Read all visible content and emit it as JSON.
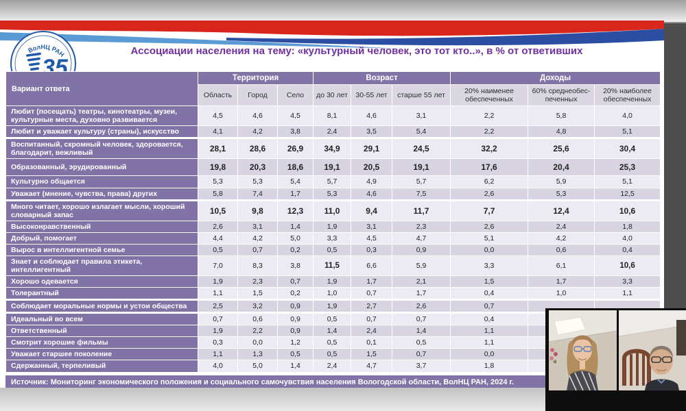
{
  "slide": {
    "title": "Ассоциации населения на тему: «культурный человек, это тот кто..», в % от ответивших",
    "source": "Источник: Мониторинг экономического положения и социального самочувствия населения Вологодской области, ВолНЦ РАН, 2024 г.",
    "logo": {
      "arc_text": "ВолНЦ РАН",
      "number": "35",
      "years": "лет"
    }
  },
  "colors": {
    "header_purple": "#8273A6",
    "row_light": "#ECEAF2",
    "row_dark": "#D8D4E2",
    "subheader_bg": "#DAD7E3",
    "title_purple": "#7030A0",
    "source_purple": "#8273A6",
    "ribbon_red": "#D9261C",
    "ribbon_light_blue": "#5B9BD5",
    "ribbon_dark_blue": "#2B4EA2",
    "side_band_gray": "#4e4e4e"
  },
  "table": {
    "corner_header": "Вариант ответа",
    "groups": [
      {
        "label": "Территория",
        "span": 3
      },
      {
        "label": "Возраст",
        "span": 3
      },
      {
        "label": "Доходы",
        "span": 3
      }
    ],
    "subheaders": [
      "Область",
      "Город",
      "Село",
      "до 30 лет",
      "30-55 лет",
      "старше 55 лет",
      "20% наименее обеспеченных",
      "60% среднеобес-печенных",
      "20% наиболее обеспеченных"
    ],
    "rows": [
      {
        "label": "Любит (посещать) театры, кинотеатры, музеи, культурные места, духовно развивается",
        "values": [
          "4,5",
          "4,6",
          "4,5",
          "8,1",
          "4,6",
          "3,1",
          "2,2",
          "5,8",
          "4,0"
        ],
        "bold": false,
        "bold_cells": [],
        "sep": false
      },
      {
        "label": "Любит и уважает культуру (страны), искусство",
        "values": [
          "4,1",
          "4,2",
          "3,8",
          "2,4",
          "3,5",
          "5,4",
          "2,2",
          "4,8",
          "5,1"
        ],
        "bold": false,
        "bold_cells": [],
        "sep": false
      },
      {
        "label": "Воспитанный, скромный человек, здоровается, благодарит, вежливый",
        "values": [
          "28,1",
          "28,6",
          "26,9",
          "34,9",
          "29,1",
          "24,5",
          "32,2",
          "25,6",
          "30,4"
        ],
        "bold": true,
        "bold_cells": [],
        "sep": true
      },
      {
        "label": "Образованный, эрудированный",
        "values": [
          "19,8",
          "20,3",
          "18,6",
          "19,1",
          "20,5",
          "19,1",
          "17,6",
          "20,4",
          "25,3"
        ],
        "bold": true,
        "bold_cells": [],
        "sep": false
      },
      {
        "label": "Культурно общается",
        "values": [
          "5,3",
          "5,3",
          "5,4",
          "5,7",
          "4,9",
          "5,7",
          "6,2",
          "5,9",
          "5,1"
        ],
        "bold": false,
        "bold_cells": [],
        "sep": false
      },
      {
        "label": "Уважает (мнение, чувства, права) других",
        "values": [
          "5,8",
          "7,4",
          "1,7",
          "5,3",
          "4,6",
          "7,5",
          "2,6",
          "5,3",
          "12,5"
        ],
        "bold": false,
        "bold_cells": [],
        "sep": false
      },
      {
        "label": "Много читает, хорошо излагает мысли, хороший словарный запас",
        "values": [
          "10,5",
          "9,8",
          "12,3",
          "11,0",
          "9,4",
          "11,7",
          "7,7",
          "12,4",
          "10,6"
        ],
        "bold": true,
        "bold_cells": [],
        "sep": true
      },
      {
        "label": "Высоконравственный",
        "values": [
          "2,6",
          "3,1",
          "1,4",
          "1,9",
          "3,1",
          "2,3",
          "2,6",
          "2,4",
          "1,8"
        ],
        "bold": false,
        "bold_cells": [],
        "sep": false
      },
      {
        "label": "Добрый, помогает",
        "values": [
          "4,4",
          "4,2",
          "5,0",
          "3,3",
          "4,5",
          "4,7",
          "5,1",
          "4,2",
          "4,0"
        ],
        "bold": false,
        "bold_cells": [],
        "sep": false
      },
      {
        "label": "Вырос в интеллигентной семье",
        "values": [
          "0,5",
          "0,7",
          "0,2",
          "0,5",
          "0,3",
          "0,9",
          "0,0",
          "0,6",
          "0,4"
        ],
        "bold": false,
        "bold_cells": [],
        "sep": false
      },
      {
        "label": "Знает и соблюдает правила этикета, интеллигентный",
        "values": [
          "7,0",
          "8,3",
          "3,8",
          "11,5",
          "6,6",
          "5,9",
          "3,3",
          "6,1",
          "10,6"
        ],
        "bold": false,
        "bold_cells": [
          3,
          8
        ],
        "sep": false
      },
      {
        "label": "Хорошо одевается",
        "values": [
          "1,9",
          "2,3",
          "0,7",
          "1,9",
          "1,7",
          "2,1",
          "1,5",
          "1,7",
          "3,3"
        ],
        "bold": false,
        "bold_cells": [],
        "sep": false
      },
      {
        "label": "Толерантный",
        "values": [
          "1,1",
          "1,5",
          "0,2",
          "1,0",
          "0,7",
          "1,7",
          "0,4",
          "1,0",
          "1,1"
        ],
        "bold": false,
        "bold_cells": [],
        "sep": false
      },
      {
        "label": "Соблюдает моральные нормы и устои общества",
        "values": [
          "2,5",
          "3,2",
          "0,9",
          "1,9",
          "2,7",
          "2,6",
          "0,7",
          "",
          ""
        ],
        "bold": false,
        "bold_cells": [],
        "sep": true
      },
      {
        "label": "Идеальный во всем",
        "values": [
          "0,7",
          "0,6",
          "0,9",
          "0,5",
          "0,7",
          "0,7",
          "0,4",
          "",
          ""
        ],
        "bold": false,
        "bold_cells": [],
        "sep": true
      },
      {
        "label": "Ответственный",
        "values": [
          "1,9",
          "2,2",
          "0,9",
          "1,4",
          "2,4",
          "1,4",
          "1,1",
          "",
          ""
        ],
        "bold": false,
        "bold_cells": [],
        "sep": false
      },
      {
        "label": "Смотрит хорошие фильмы",
        "values": [
          "0,3",
          "0,0",
          "1,2",
          "0,5",
          "0,1",
          "0,5",
          "1,1",
          "",
          ""
        ],
        "bold": false,
        "bold_cells": [],
        "sep": false
      },
      {
        "label": "Уважает старшее поколение",
        "values": [
          "1,1",
          "1,3",
          "0,5",
          "0,5",
          "1,5",
          "0,7",
          "0,0",
          "",
          ""
        ],
        "bold": false,
        "bold_cells": [],
        "sep": false
      },
      {
        "label": "Сдержанный, терпеливый",
        "values": [
          "4,0",
          "5,0",
          "1,4",
          "2,4",
          "4,7",
          "3,7",
          "1,8",
          "",
          ""
        ],
        "bold": false,
        "bold_cells": [],
        "sep": false
      }
    ]
  },
  "webcams": [
    {
      "label": "participant-video-1",
      "description": "woman with glasses, office ceiling light"
    },
    {
      "label": "participant-video-2",
      "description": "man with glasses, wooden chair"
    }
  ]
}
